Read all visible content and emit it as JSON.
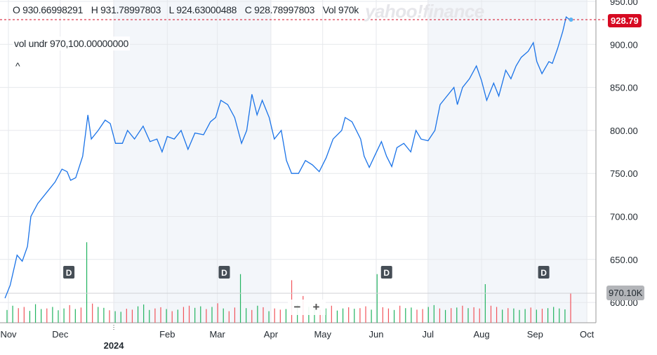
{
  "header": {
    "open": "O 930.66998291",
    "high": "H 931.78997803",
    "low": "L 924.63000488",
    "close": "C 928.78997803",
    "volume": "Vol 970k",
    "vol_undr": "vol undr  970,100.00000000",
    "collapse_glyph": "^",
    "logo": "yahoo!finance"
  },
  "current_price_label": "928.79",
  "current_volume_label": "970.10K",
  "zoom": {
    "minus": "−",
    "plus": "+"
  },
  "colors": {
    "line": "#1a73e8",
    "up": "#21b35f",
    "down": "#f2545b",
    "price_tag": "#d60a22",
    "band": "#f3f6fa"
  },
  "chart_data": {
    "type": "line",
    "title": "",
    "xlabel": "",
    "ylabel": "",
    "ylim": [
      575,
      950
    ],
    "yticks": [
      "950.00",
      "900.00",
      "850.00",
      "800.00",
      "750.00",
      "700.00",
      "650.00",
      "600.00"
    ],
    "ytick_values": [
      950,
      900,
      850,
      800,
      750,
      700,
      650,
      600
    ],
    "xticks": [
      {
        "label": "Nov",
        "date": "2023-11-01"
      },
      {
        "label": "Dec",
        "date": "2023-12-01"
      },
      {
        "label": "2024",
        "date": "2024-01-01"
      },
      {
        "label": "Feb",
        "date": "2024-02-01"
      },
      {
        "label": "Mar",
        "date": "2024-03-01"
      },
      {
        "label": "Apr",
        "date": "2024-04-01"
      },
      {
        "label": "May",
        "date": "2024-05-01"
      },
      {
        "label": "Jun",
        "date": "2024-06-01"
      },
      {
        "label": "Jul",
        "date": "2024-07-01"
      },
      {
        "label": "Aug",
        "date": "2024-08-01"
      },
      {
        "label": "Sep",
        "date": "2024-09-01"
      },
      {
        "label": "Oct",
        "date": "2024-10-01"
      }
    ],
    "grid": true,
    "price_series": [
      [
        "2023-10-30",
        605
      ],
      [
        "2023-11-02",
        620
      ],
      [
        "2023-11-06",
        655
      ],
      [
        "2023-11-09",
        648
      ],
      [
        "2023-11-12",
        665
      ],
      [
        "2023-11-14",
        700
      ],
      [
        "2023-11-18",
        715
      ],
      [
        "2023-11-24",
        730
      ],
      [
        "2023-11-28",
        740
      ],
      [
        "2023-12-02",
        755
      ],
      [
        "2023-12-05",
        752
      ],
      [
        "2023-12-07",
        742
      ],
      [
        "2023-12-10",
        745
      ],
      [
        "2023-12-14",
        770
      ],
      [
        "2023-12-17",
        818
      ],
      [
        "2023-12-19",
        790
      ],
      [
        "2023-12-23",
        800
      ],
      [
        "2023-12-27",
        812
      ],
      [
        "2023-12-30",
        808
      ],
      [
        "2024-01-02",
        785
      ],
      [
        "2024-01-06",
        785
      ],
      [
        "2024-01-09",
        800
      ],
      [
        "2024-01-13",
        790
      ],
      [
        "2024-01-18",
        805
      ],
      [
        "2024-01-22",
        787
      ],
      [
        "2024-01-26",
        790
      ],
      [
        "2024-01-29",
        775
      ],
      [
        "2024-02-01",
        793
      ],
      [
        "2024-02-05",
        790
      ],
      [
        "2024-02-09",
        800
      ],
      [
        "2024-02-13",
        778
      ],
      [
        "2024-02-17",
        797
      ],
      [
        "2024-02-22",
        795
      ],
      [
        "2024-02-26",
        810
      ],
      [
        "2024-02-29",
        815
      ],
      [
        "2024-03-03",
        835
      ],
      [
        "2024-03-07",
        830
      ],
      [
        "2024-03-11",
        815
      ],
      [
        "2024-03-15",
        785
      ],
      [
        "2024-03-18",
        800
      ],
      [
        "2024-03-21",
        842
      ],
      [
        "2024-03-24",
        818
      ],
      [
        "2024-03-27",
        835
      ],
      [
        "2024-03-31",
        815
      ],
      [
        "2024-04-03",
        790
      ],
      [
        "2024-04-07",
        800
      ],
      [
        "2024-04-10",
        765
      ],
      [
        "2024-04-13",
        750
      ],
      [
        "2024-04-17",
        750
      ],
      [
        "2024-04-21",
        765
      ],
      [
        "2024-04-25",
        760
      ],
      [
        "2024-04-29",
        752
      ],
      [
        "2024-05-03",
        768
      ],
      [
        "2024-05-07",
        790
      ],
      [
        "2024-05-12",
        800
      ],
      [
        "2024-05-14",
        815
      ],
      [
        "2024-05-18",
        810
      ],
      [
        "2024-05-23",
        790
      ],
      [
        "2024-05-25",
        770
      ],
      [
        "2024-05-28",
        757
      ],
      [
        "2024-05-31",
        770
      ],
      [
        "2024-06-04",
        787
      ],
      [
        "2024-06-07",
        770
      ],
      [
        "2024-06-10",
        758
      ],
      [
        "2024-06-13",
        780
      ],
      [
        "2024-06-17",
        785
      ],
      [
        "2024-06-21",
        775
      ],
      [
        "2024-06-24",
        800
      ],
      [
        "2024-06-27",
        790
      ],
      [
        "2024-07-01",
        788
      ],
      [
        "2024-07-05",
        800
      ],
      [
        "2024-07-08",
        830
      ],
      [
        "2024-07-12",
        840
      ],
      [
        "2024-07-16",
        850
      ],
      [
        "2024-07-18",
        830
      ],
      [
        "2024-07-21",
        850
      ],
      [
        "2024-07-25",
        860
      ],
      [
        "2024-07-29",
        875
      ],
      [
        "2024-08-01",
        858
      ],
      [
        "2024-08-04",
        835
      ],
      [
        "2024-08-08",
        855
      ],
      [
        "2024-08-11",
        840
      ],
      [
        "2024-08-15",
        870
      ],
      [
        "2024-08-18",
        860
      ],
      [
        "2024-08-21",
        875
      ],
      [
        "2024-08-24",
        885
      ],
      [
        "2024-08-28",
        892
      ],
      [
        "2024-08-31",
        902
      ],
      [
        "2024-09-02",
        880
      ],
      [
        "2024-09-05",
        866
      ],
      [
        "2024-09-09",
        880
      ],
      [
        "2024-09-11",
        878
      ],
      [
        "2024-09-14",
        895
      ],
      [
        "2024-09-17",
        915
      ],
      [
        "2024-09-19",
        932
      ],
      [
        "2024-09-21",
        928.79
      ]
    ],
    "volume_k": [
      420,
      560,
      480,
      520,
      390,
      610,
      450,
      470,
      520,
      410,
      470,
      580,
      450,
      500,
      2650,
      630,
      520,
      490,
      410,
      380,
      360,
      460,
      430,
      540,
      600,
      420,
      470,
      510,
      450,
      380,
      430,
      520,
      560,
      490,
      540,
      450,
      520,
      640,
      470,
      380,
      500,
      1600,
      480,
      420,
      560,
      510,
      380,
      470,
      430,
      450,
      1400,
      600,
      880,
      520,
      480,
      430,
      470,
      560,
      400,
      470,
      510,
      460,
      480,
      540,
      430,
      1600,
      510,
      470,
      420,
      560,
      480,
      500,
      430,
      450,
      520,
      580,
      470,
      420,
      480,
      500,
      560,
      480,
      510,
      470,
      1270,
      560,
      520,
      430,
      480,
      470,
      420,
      450,
      500,
      430,
      460,
      480,
      520,
      470,
      440,
      970.1
    ],
    "volume_dir": "ggrrgggrgggrgrgrggrggrrgggrrgrgrrggrgrgrrggrgrgrrgrgrggrgrggrgrrggrrgrggrrggrgrgrgrrgrrgrgggrgrggggr",
    "dividend_markers": [
      {
        "label": "D",
        "date": "2023-12-06"
      },
      {
        "label": "D",
        "date": "2024-03-05"
      },
      {
        "label": "D",
        "date": "2024-06-07"
      },
      {
        "label": "D",
        "date": "2024-09-06"
      }
    ],
    "shaded_ranges": [
      [
        "2024-01-01",
        "2024-04-01"
      ],
      [
        "2024-07-01",
        "2024-10-01"
      ]
    ]
  }
}
